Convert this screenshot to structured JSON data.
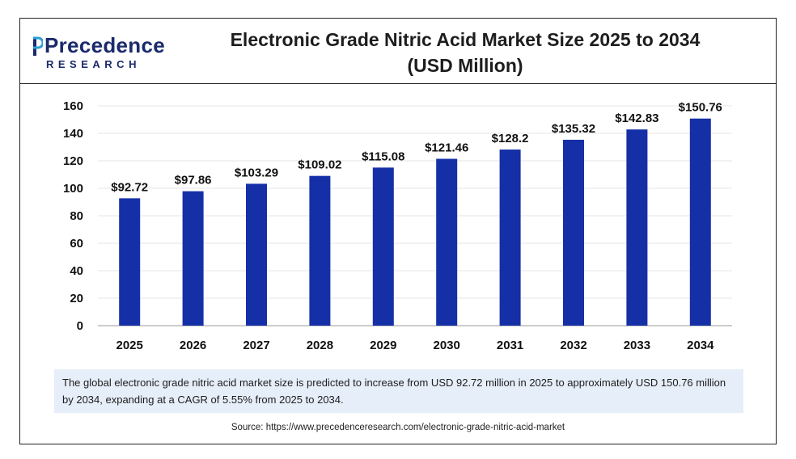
{
  "brand": {
    "name": "Precedence",
    "sub": "RESEARCH"
  },
  "colors": {
    "bar": "#1530a6",
    "brand": "#1a2a6c",
    "note_bg": "#e6eef9"
  },
  "chart_data": {
    "type": "bar",
    "title": "Electronic Grade Nitric Acid Market Size 2025 to 2034 (USD Million)",
    "title_line1": "Electronic Grade Nitric Acid Market Size 2025 to 2034",
    "title_line2": "(USD Million)",
    "categories": [
      "2025",
      "2026",
      "2027",
      "2028",
      "2029",
      "2030",
      "2031",
      "2032",
      "2033",
      "2034"
    ],
    "values": [
      92.72,
      97.86,
      103.29,
      109.02,
      115.08,
      121.46,
      128.2,
      135.32,
      142.83,
      150.76
    ],
    "data_labels": [
      "$92.72",
      "$97.86",
      "$103.29",
      "$109.02",
      "$115.08",
      "$121.46",
      "$128.2",
      "$135.32",
      "$142.83",
      "$150.76"
    ],
    "yticks": [
      0,
      20,
      40,
      60,
      80,
      100,
      120,
      140,
      160
    ],
    "ylim": [
      0,
      160
    ],
    "grid": true,
    "legend": "none"
  },
  "note": "The global electronic grade nitric acid market size is predicted to increase from USD 92.72 million in 2025 to approximately USD 150.76 million by 2034, expanding at a CAGR of 5.55% from 2025 to 2034.",
  "source": "Source: https://www.precedenceresearch.com/electronic-grade-nitric-acid-market"
}
